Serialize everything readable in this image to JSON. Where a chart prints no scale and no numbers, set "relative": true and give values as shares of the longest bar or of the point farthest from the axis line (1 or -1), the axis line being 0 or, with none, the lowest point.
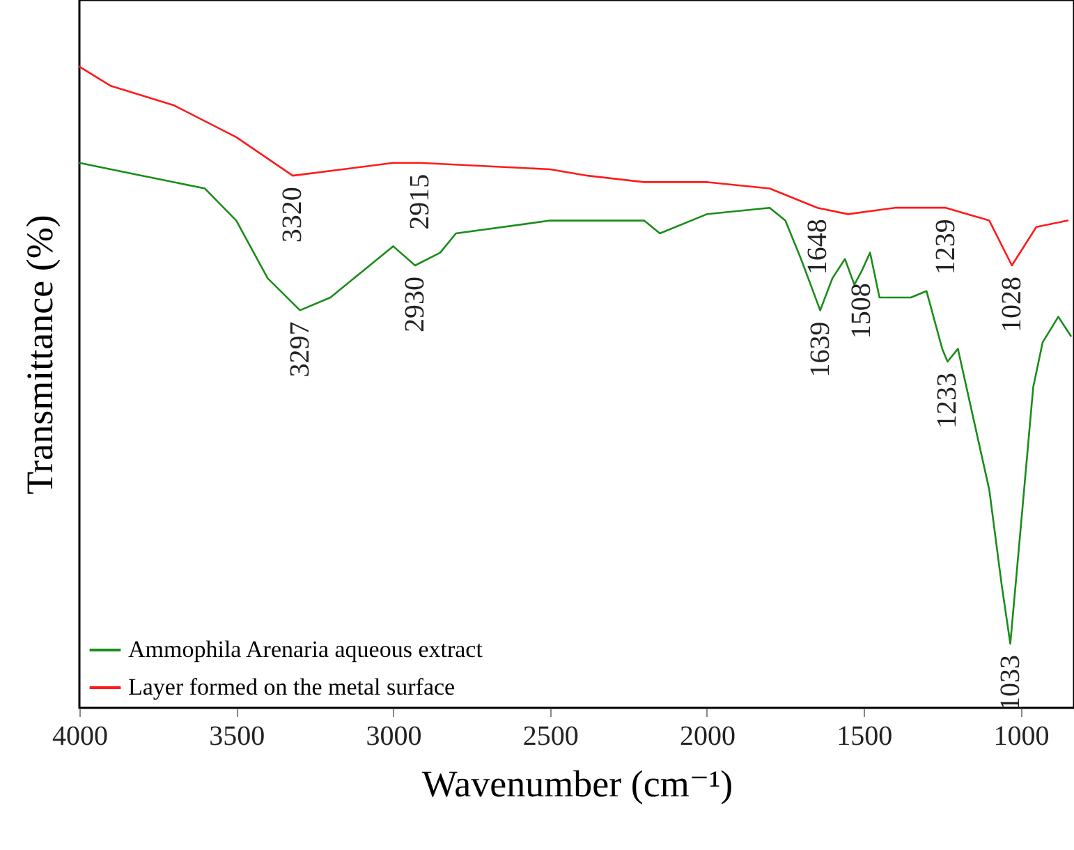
{
  "chart_data": {
    "type": "line",
    "relative": true,
    "xlabel": "Wavenumber (cm⁻¹)",
    "ylabel": "Transmittance (%)",
    "xlim": [
      4000,
      830
    ],
    "xticks": [
      4000,
      3500,
      3000,
      2500,
      2000,
      1500,
      1000
    ],
    "tick_labels": "x",
    "grid": false,
    "legend": "bottom left",
    "marker": "none",
    "line_style": "solid",
    "series": [
      {
        "name": "Ammophila Arenaria aqueous extract",
        "color": "#1a8c1a",
        "x": [
          4000,
          3800,
          3600,
          3500,
          3400,
          3297,
          3200,
          3100,
          3000,
          2930,
          2850,
          2800,
          2500,
          2200,
          2150,
          2000,
          1800,
          1750,
          1700,
          1639,
          1600,
          1560,
          1530,
          1508,
          1480,
          1450,
          1350,
          1300,
          1250,
          1233,
          1200,
          1150,
          1100,
          1060,
          1033,
          1000,
          960,
          930,
          880,
          840
        ],
        "values": [
          0.85,
          0.83,
          0.81,
          0.76,
          0.67,
          0.62,
          0.64,
          0.68,
          0.72,
          0.69,
          0.71,
          0.74,
          0.76,
          0.76,
          0.74,
          0.77,
          0.78,
          0.76,
          0.7,
          0.62,
          0.67,
          0.7,
          0.66,
          0.68,
          0.71,
          0.64,
          0.64,
          0.65,
          0.56,
          0.54,
          0.56,
          0.45,
          0.34,
          0.19,
          0.1,
          0.28,
          0.5,
          0.57,
          0.61,
          0.58
        ]
      },
      {
        "name": "Layer formed on the metal surface",
        "color": "#ff1a1a",
        "x": [
          4000,
          3900,
          3700,
          3500,
          3320,
          3000,
          2915,
          2500,
          2380,
          2200,
          2000,
          1800,
          1648,
          1550,
          1400,
          1239,
          1100,
          1028,
          950,
          850
        ],
        "values": [
          1.0,
          0.97,
          0.94,
          0.89,
          0.83,
          0.85,
          0.85,
          0.84,
          0.83,
          0.82,
          0.82,
          0.81,
          0.78,
          0.77,
          0.78,
          0.78,
          0.76,
          0.69,
          0.75,
          0.76
        ]
      }
    ],
    "annotations": [
      {
        "text": "3320",
        "x": 3320,
        "y": 0.83
      },
      {
        "text": "2915",
        "x": 2915,
        "y": 0.85
      },
      {
        "text": "1648",
        "x": 1648,
        "y": 0.78
      },
      {
        "text": "1239",
        "x": 1239,
        "y": 0.78
      },
      {
        "text": "1028",
        "x": 1028,
        "y": 0.69
      },
      {
        "text": "3297",
        "x": 3297,
        "y": 0.62
      },
      {
        "text": "2930",
        "x": 2930,
        "y": 0.69
      },
      {
        "text": "1639",
        "x": 1639,
        "y": 0.62
      },
      {
        "text": "1508",
        "x": 1508,
        "y": 0.68
      },
      {
        "text": "1233",
        "x": 1233,
        "y": 0.54
      },
      {
        "text": "1033",
        "x": 1033,
        "y": 0.1
      }
    ]
  }
}
